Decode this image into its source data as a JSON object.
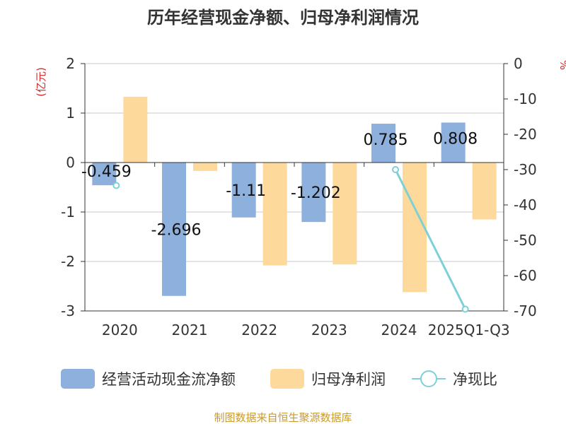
{
  "chart_data": {
    "type": "bar",
    "title": "历年经营现金净额、归母净利润情况",
    "categories": [
      "2020",
      "2021",
      "2022",
      "2023",
      "2024",
      "2025Q1-Q3"
    ],
    "left_axis": {
      "unit": "(亿元)",
      "ylim": [
        -3,
        2
      ],
      "ticks": [
        "2",
        "1",
        "0",
        "-1",
        "-2",
        "-3"
      ]
    },
    "right_axis": {
      "unit": "%",
      "ylim": [
        -70,
        0
      ],
      "ticks": [
        "0",
        "-10",
        "-20",
        "-30",
        "-40",
        "-50",
        "-60",
        "-70"
      ]
    },
    "grid": true,
    "legend_position": "bottom",
    "series": [
      {
        "name": "经营活动现金流净额",
        "type": "bar",
        "axis": "left",
        "color": "#8eb0dc",
        "values": [
          -0.459,
          -2.696,
          -1.11,
          -1.202,
          0.785,
          0.808
        ],
        "labels": [
          "-0.459",
          "-2.696",
          "-1.11",
          "-1.202",
          "0.785",
          "0.808"
        ]
      },
      {
        "name": "归母净利润",
        "type": "bar",
        "axis": "left",
        "color": "#fdd99b",
        "values": [
          1.33,
          -0.17,
          -2.08,
          -2.06,
          -2.62,
          -1.15
        ]
      },
      {
        "name": "净现比",
        "type": "line",
        "axis": "right",
        "color": "#7fd0d6",
        "values": [
          -34.5,
          null,
          null,
          null,
          -30,
          -69.5
        ]
      }
    ],
    "source": "制图数据来自恒生聚源数据库"
  }
}
